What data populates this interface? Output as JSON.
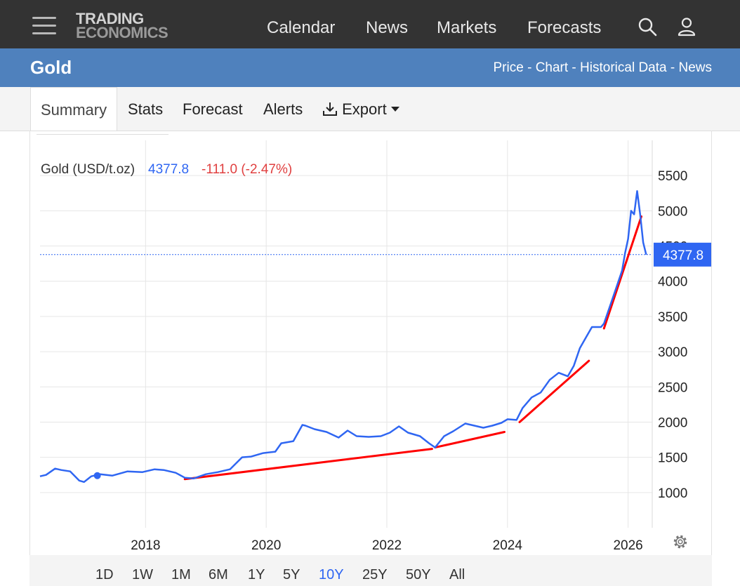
{
  "header": {
    "logo_line1": "TRADING",
    "logo_line2": "ECONOMICS",
    "nav": [
      "Calendar",
      "News",
      "Markets",
      "Forecasts"
    ],
    "search_icon": "search-icon",
    "user_icon": "user-icon",
    "menu_icon": "hamburger-menu-icon"
  },
  "title_bar": {
    "title": "Gold",
    "links": [
      "Price",
      "Chart",
      "Historical Data",
      "News"
    ],
    "separator": " - "
  },
  "tabs": {
    "summary": "Summary",
    "stats": "Stats",
    "forecast": "Forecast",
    "alerts": "Alerts",
    "export": "Export",
    "export_icon": "download-icon"
  },
  "range_buttons": [
    "1D",
    "1W",
    "1M",
    "6M",
    "1Y",
    "5Y",
    "10Y",
    "25Y",
    "50Y",
    "All"
  ],
  "active_range": "10Y",
  "colors": {
    "line": "#2f66f2",
    "trend": "#ff0000",
    "change_negative": "#e04040",
    "label_bg": "#2f66f2",
    "header_bg": "#333333",
    "title_bar_bg": "#4f81bd"
  },
  "chart_data": {
    "type": "line",
    "title": "Gold (USD/t.oz)",
    "last_value_text": "4377.8",
    "change_text": "-111.0 (-2.47%)",
    "last_value_label": "4377.8",
    "x_ticks": [
      "2018",
      "2020",
      "2022",
      "2024",
      "2026"
    ],
    "y_ticks": [
      1000,
      1500,
      2000,
      2500,
      3000,
      3500,
      4000,
      4500,
      5000,
      5500
    ],
    "ylim": [
      500,
      6000
    ],
    "xlim": [
      2016.25,
      2026.4
    ],
    "grid": true,
    "series": [
      {
        "color": "#2f66f2",
        "x": [
          2016.25,
          2016.35,
          2016.5,
          2016.6,
          2016.75,
          2016.9,
          2016.98,
          2017.1,
          2017.25,
          2017.45,
          2017.7,
          2017.95,
          2018.15,
          2018.3,
          2018.5,
          2018.65,
          2018.8,
          2019.0,
          2019.2,
          2019.4,
          2019.6,
          2019.75,
          2019.95,
          2020.15,
          2020.25,
          2020.45,
          2020.6,
          2020.65,
          2020.8,
          2021.0,
          2021.2,
          2021.35,
          2021.5,
          2021.7,
          2021.9,
          2022.05,
          2022.2,
          2022.35,
          2022.55,
          2022.7,
          2022.8,
          2022.95,
          2023.1,
          2023.3,
          2023.45,
          2023.6,
          2023.75,
          2023.9,
          2024.0,
          2024.15,
          2024.25,
          2024.4,
          2024.55,
          2024.7,
          2024.85,
          2025.0,
          2025.1,
          2025.2,
          2025.3,
          2025.4,
          2025.55,
          2025.6,
          2025.7,
          2025.8,
          2025.9,
          2025.95,
          2026.0,
          2026.05,
          2026.1,
          2026.15,
          2026.2,
          2026.25,
          2026.3
        ],
        "values": [
          1230,
          1250,
          1340,
          1320,
          1300,
          1170,
          1150,
          1230,
          1260,
          1240,
          1300,
          1290,
          1330,
          1320,
          1280,
          1210,
          1200,
          1260,
          1290,
          1330,
          1500,
          1510,
          1560,
          1580,
          1700,
          1730,
          1960,
          1950,
          1900,
          1860,
          1780,
          1880,
          1800,
          1790,
          1800,
          1850,
          1940,
          1850,
          1800,
          1700,
          1640,
          1800,
          1870,
          1980,
          1950,
          1920,
          1950,
          1990,
          2040,
          2030,
          2200,
          2350,
          2420,
          2600,
          2700,
          2650,
          2800,
          3050,
          3200,
          3350,
          3350,
          3400,
          3650,
          3900,
          4150,
          4400,
          4600,
          5000,
          4950,
          5280,
          4950,
          4550,
          4377.8
        ]
      }
    ],
    "trend_lines": [
      {
        "x": [
          2018.65,
          2022.75
        ],
        "values": [
          1190,
          1620
        ]
      },
      {
        "x": [
          2022.8,
          2023.95
        ],
        "values": [
          1640,
          1860
        ]
      },
      {
        "x": [
          2024.2,
          2025.35
        ],
        "values": [
          2000,
          2870
        ]
      },
      {
        "x": [
          2025.6,
          2026.22
        ],
        "values": [
          3330,
          4920
        ]
      }
    ]
  }
}
